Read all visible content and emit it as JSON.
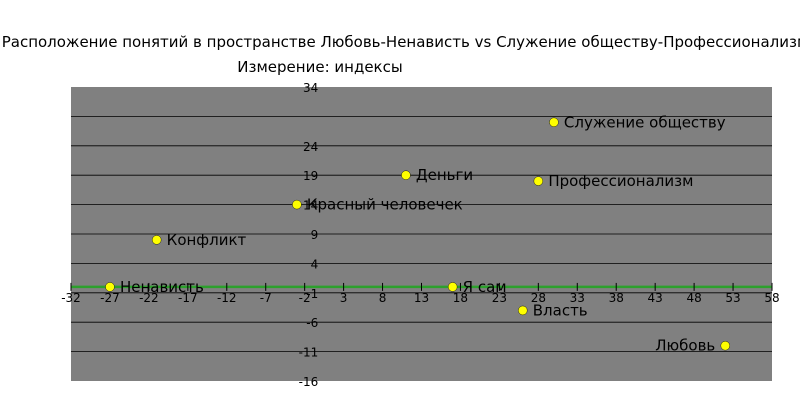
{
  "chart_data": {
    "type": "scatter",
    "title": "Расположение понятий в пространстве Любовь-Ненависть vs Служение обществу-Профессионализм",
    "subtitle": "Измерение: индексы",
    "xlim": [
      -32,
      58
    ],
    "ylim": [
      -16,
      34
    ],
    "x_ticks": [
      "-32",
      "-27",
      "-22",
      "-17",
      "-12",
      "-7",
      "-2",
      "3",
      "8",
      "13",
      "18",
      "23",
      "28",
      "33",
      "38",
      "43",
      "48",
      "53",
      "58"
    ],
    "y_ticks": [
      "34",
      "24",
      "19",
      "14",
      "9",
      "4",
      "-1",
      "-6",
      "-11",
      "-16"
    ],
    "grid": true,
    "plot_background": "#808080",
    "gridline_color": "#000000",
    "highlight_line": {
      "y": 0,
      "color": "#2ca02c"
    },
    "marker_color": "#ffff00",
    "points": [
      {
        "label": "Служение обществу",
        "x": 30,
        "y": 28
      },
      {
        "label": "Деньги",
        "x": 11,
        "y": 19
      },
      {
        "label": "Профессионализм",
        "x": 28,
        "y": 18
      },
      {
        "label": "Красный человечек",
        "x": -3,
        "y": 14
      },
      {
        "label": "Конфликт",
        "x": -21,
        "y": 8
      },
      {
        "label": "Ненависть",
        "x": -27,
        "y": 0
      },
      {
        "label": "Я сам",
        "x": 17,
        "y": 0
      },
      {
        "label": "Власть",
        "x": 26,
        "y": -4
      },
      {
        "label": "Любовь",
        "x": 52,
        "y": -10
      }
    ]
  }
}
